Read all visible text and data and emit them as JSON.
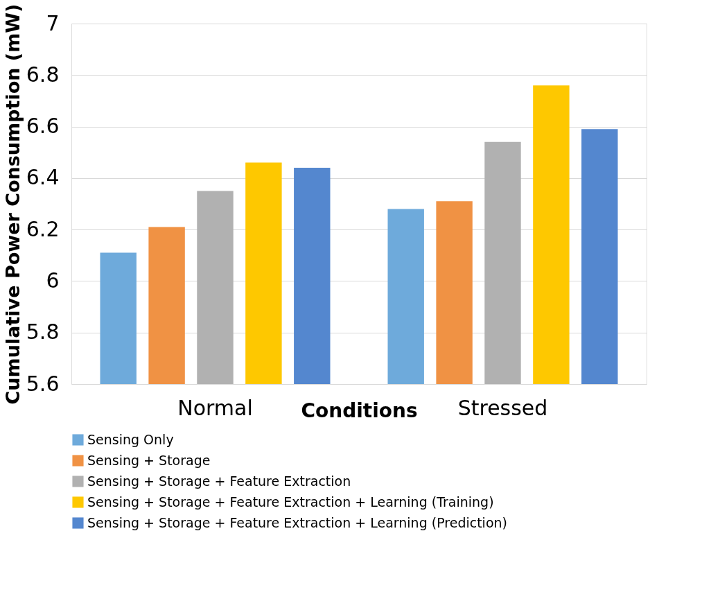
{
  "chart_data": {
    "type": "bar",
    "xlabel": "Conditions",
    "ylabel": "Cumulative Power Consumption (mW)",
    "categories": [
      "Normal",
      "Stressed"
    ],
    "series": [
      {
        "name": "Sensing Only",
        "color": "#6eaadb",
        "values": [
          6.11,
          6.28
        ]
      },
      {
        "name": "Sensing + Storage",
        "color": "#f09244",
        "values": [
          6.21,
          6.31
        ]
      },
      {
        "name": "Sensing + Storage + Feature Extraction",
        "color": "#b1b1b1",
        "values": [
          6.35,
          6.54
        ]
      },
      {
        "name": "Sensing + Storage + Feature Extraction + Learning (Training)",
        "color": "#fec800",
        "values": [
          6.46,
          6.76
        ]
      },
      {
        "name": "Sensing + Storage + Feature Extraction + Learning (Prediction)",
        "color": "#5487cf",
        "values": [
          6.44,
          6.59
        ]
      }
    ],
    "ylim": [
      5.6,
      7
    ],
    "yticks": [
      5.6,
      5.8,
      6,
      6.2,
      6.4,
      6.6,
      6.8,
      7
    ],
    "grid": "y",
    "legend": "bottom"
  }
}
